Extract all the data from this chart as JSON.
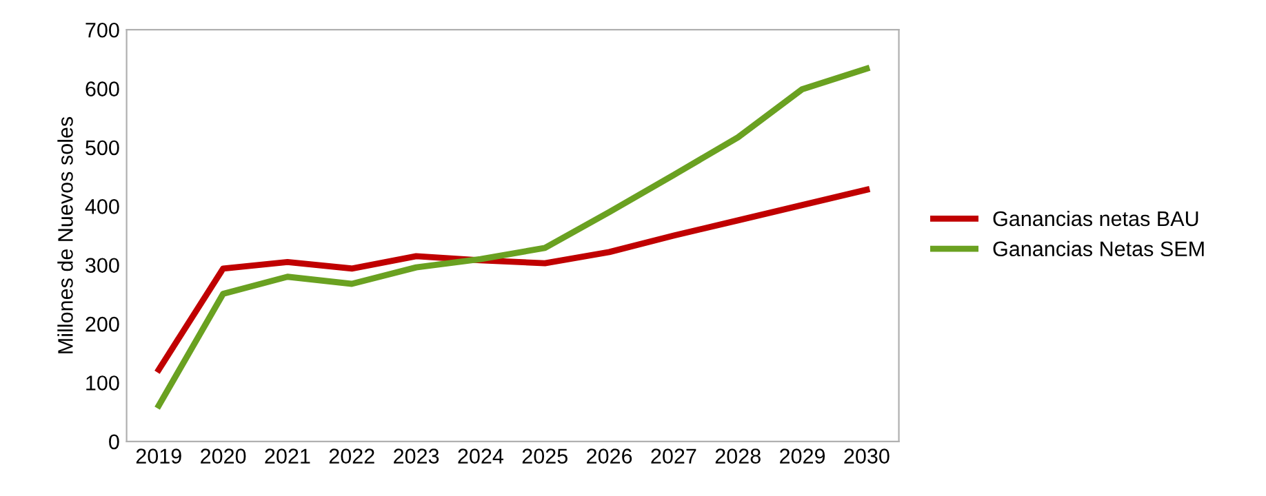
{
  "chart_data": {
    "type": "line",
    "ylabel": "Millones de Nuevos soles",
    "categories": [
      "2019",
      "2020",
      "2021",
      "2022",
      "2023",
      "2024",
      "2025",
      "2026",
      "2027",
      "2028",
      "2029",
      "2030"
    ],
    "series": [
      {
        "name": "Ganancias netas BAU",
        "color": "#c00000",
        "values": [
          122,
          294,
          305,
          294,
          315,
          308,
          303,
          322,
          350,
          376,
          402,
          428
        ]
      },
      {
        "name": "Ganancias Netas SEM",
        "color": "#6aa121",
        "values": [
          61,
          251,
          280,
          268,
          296,
          310,
          329,
          390,
          453,
          517,
          599,
          634
        ]
      }
    ],
    "ylim": [
      0,
      700
    ],
    "yticks": [
      0,
      100,
      200,
      300,
      400,
      500,
      600,
      700
    ],
    "grid": false,
    "legend": "right",
    "marker": "none",
    "line_style": "solid"
  }
}
